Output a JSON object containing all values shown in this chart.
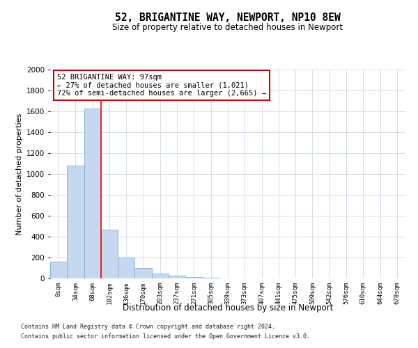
{
  "title1": "52, BRIGANTINE WAY, NEWPORT, NP10 8EW",
  "title2": "Size of property relative to detached houses in Newport",
  "xlabel": "Distribution of detached houses by size in Newport",
  "ylabel": "Number of detached properties",
  "bar_labels": [
    "0sqm",
    "34sqm",
    "68sqm",
    "102sqm",
    "136sqm",
    "170sqm",
    "203sqm",
    "237sqm",
    "271sqm",
    "305sqm",
    "339sqm",
    "373sqm",
    "407sqm",
    "441sqm",
    "475sqm",
    "509sqm",
    "542sqm",
    "576sqm",
    "610sqm",
    "644sqm",
    "678sqm"
  ],
  "bar_heights": [
    160,
    1080,
    1630,
    470,
    200,
    100,
    45,
    25,
    15,
    5,
    2,
    1,
    0,
    0,
    0,
    0,
    0,
    0,
    0,
    0,
    0
  ],
  "bar_color": "#c5d8ef",
  "bar_edge_color": "#7aadd4",
  "bar_width": 1.0,
  "red_line_x": 3.0,
  "ylim": [
    0,
    2000
  ],
  "yticks": [
    0,
    200,
    400,
    600,
    800,
    1000,
    1200,
    1400,
    1600,
    1800,
    2000
  ],
  "annotation_text": "52 BRIGANTINE WAY: 97sqm\n← 27% of detached houses are smaller (1,021)\n72% of semi-detached houses are larger (2,665) →",
  "annotation_box_color": "#ffffff",
  "annotation_box_edge_color": "#cc0000",
  "footer1": "Contains HM Land Registry data © Crown copyright and database right 2024.",
  "footer2": "Contains public sector information licensed under the Open Government Licence v3.0.",
  "background_color": "#ffffff",
  "grid_color": "#d4dce8"
}
